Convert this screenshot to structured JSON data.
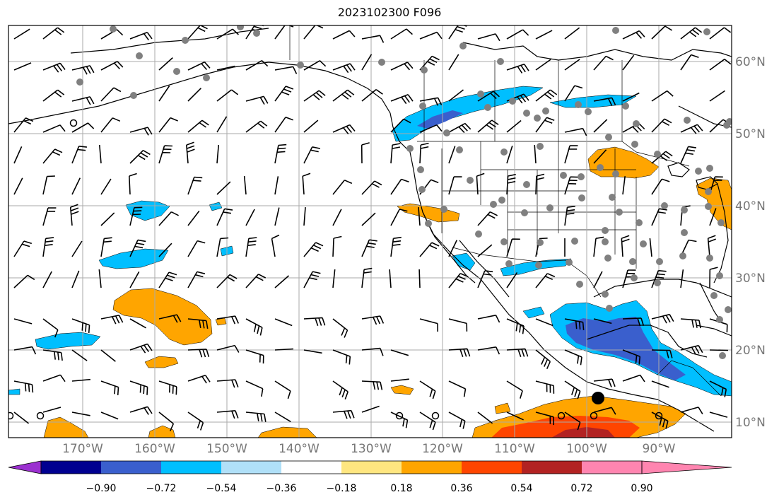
{
  "title": "2023102300 F096",
  "lon_labels": [
    "170°W",
    "160°W",
    "150°W",
    "140°W",
    "130°W",
    "120°W",
    "110°W",
    "100°W",
    "90°W"
  ],
  "lat_labels": [
    "60°N",
    "50°N",
    "40°N",
    "30°N",
    "20°N",
    "10°N"
  ],
  "colorbar": {
    "tick_labels": [
      "−0.90",
      "−0.72",
      "−0.54",
      "−0.36",
      "−0.18",
      "0.18",
      "0.36",
      "0.54",
      "0.72",
      "0.90"
    ],
    "colors": [
      "#9b30d0",
      "#000090",
      "#3a5fcd",
      "#00bfff",
      "#b0e0f8",
      "#ffffff",
      "#ffe680",
      "#ffa500",
      "#ff4500",
      "#b22222",
      "#ff85b0"
    ]
  },
  "fill_colors": {
    "light_blue": "#b0e0f8",
    "blue": "#00bfff",
    "dark_blue": "#3a5fcd",
    "yellow": "#ffe680",
    "orange": "#ffa500",
    "red": "#ff4500",
    "dark_red": "#b22222"
  }
}
